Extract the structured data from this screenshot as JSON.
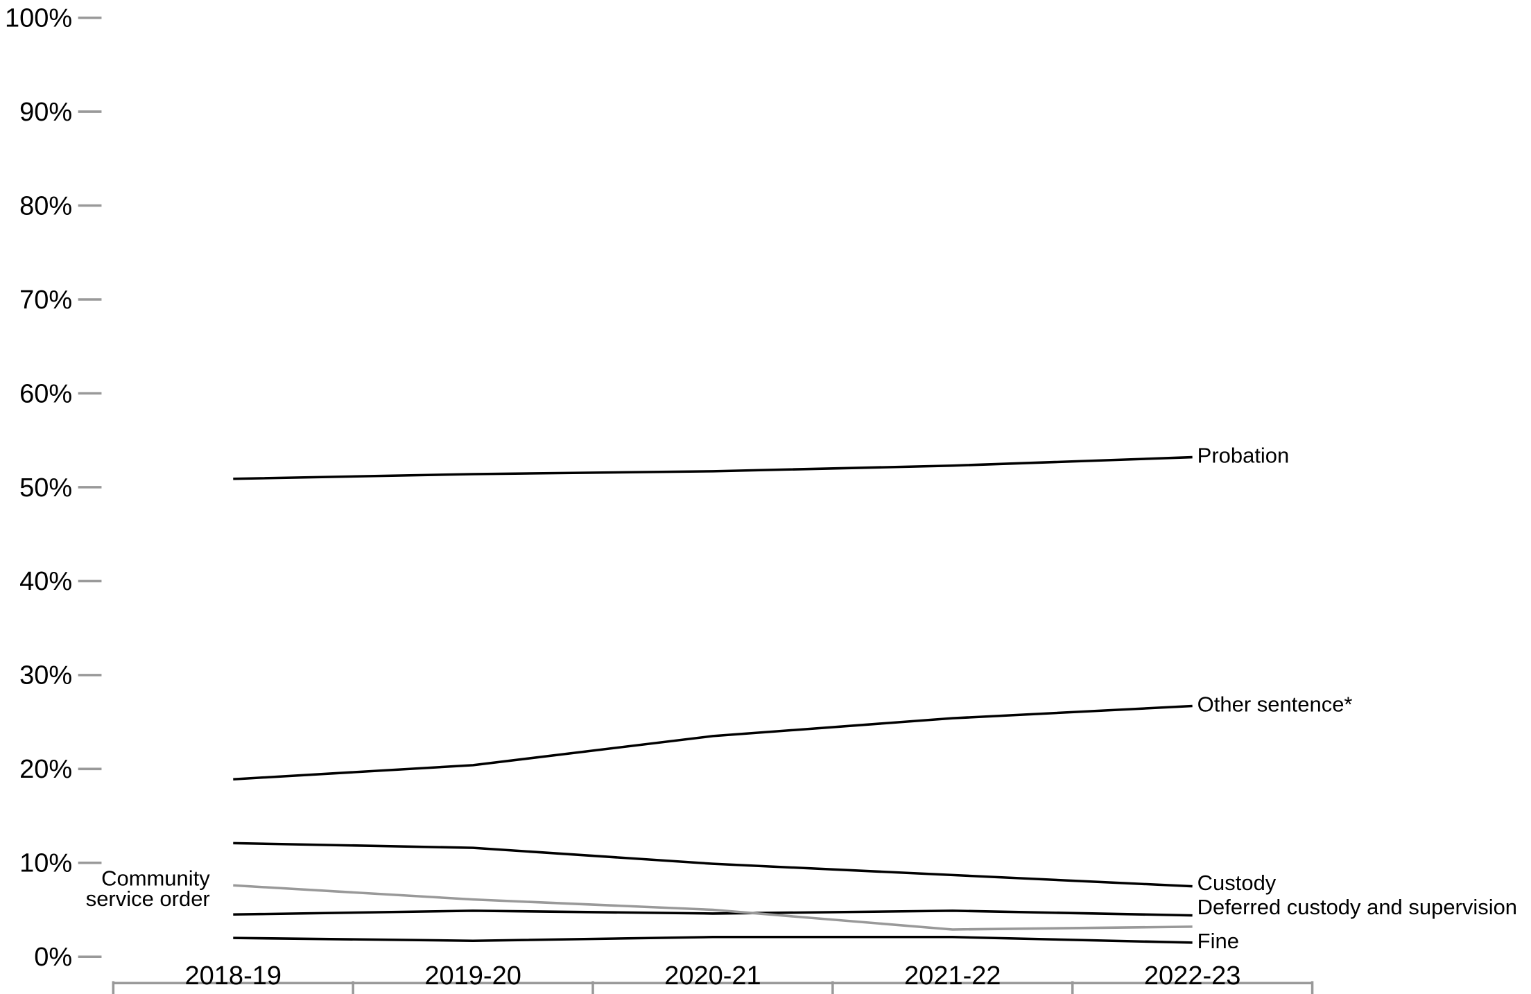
{
  "chart_data": {
    "type": "line",
    "categories": [
      "2018-19",
      "2019-20",
      "2020-21",
      "2021-22",
      "2022-23"
    ],
    "ylim": [
      0,
      100
    ],
    "yticks": [
      {
        "value": 0,
        "label": "0%"
      },
      {
        "value": 10,
        "label": "10%"
      },
      {
        "value": 20,
        "label": "20%"
      },
      {
        "value": 30,
        "label": "30%"
      },
      {
        "value": 40,
        "label": "40%"
      },
      {
        "value": 50,
        "label": "50%"
      },
      {
        "value": 60,
        "label": "60%"
      },
      {
        "value": 70,
        "label": "70%"
      },
      {
        "value": 80,
        "label": "80%"
      },
      {
        "value": 90,
        "label": "90%"
      },
      {
        "value": 100,
        "label": "100%"
      }
    ],
    "series": [
      {
        "name": "Probation",
        "color": "#000000",
        "values": [
          50.9,
          51.4,
          51.7,
          52.3,
          53.2
        ]
      },
      {
        "name": "Other sentence*",
        "color": "#000000",
        "values": [
          18.9,
          20.4,
          23.5,
          25.4,
          26.7
        ]
      },
      {
        "name": "Custody",
        "color": "#000000",
        "values": [
          12.1,
          11.6,
          9.9,
          8.7,
          7.5
        ]
      },
      {
        "name": "Deferred custody and supervision",
        "color": "#000000",
        "values": [
          4.5,
          4.9,
          4.6,
          4.9,
          4.4
        ]
      },
      {
        "name": "Community service order",
        "color": "#999999",
        "values": [
          7.6,
          6.1,
          5.0,
          2.9,
          3.2
        ]
      },
      {
        "name": "Fine",
        "color": "#000000",
        "values": [
          2.0,
          1.7,
          2.1,
          2.1,
          1.5
        ]
      }
    ]
  }
}
